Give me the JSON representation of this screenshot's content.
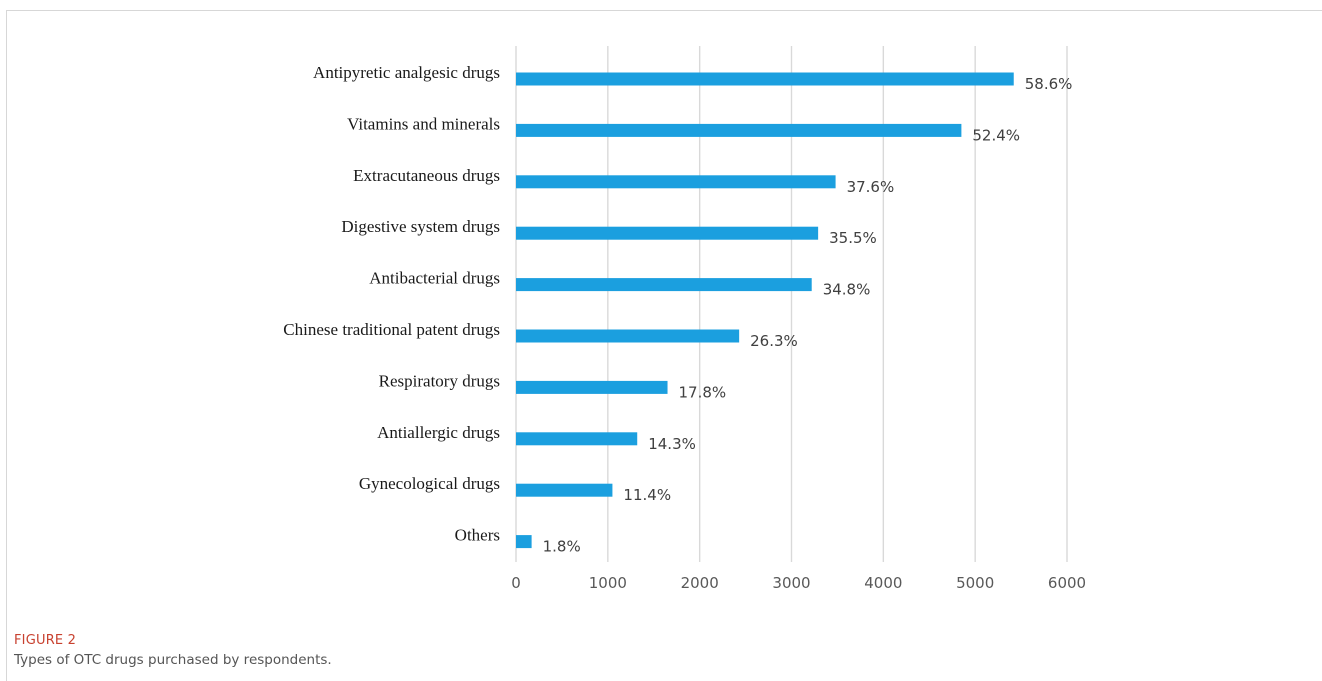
{
  "figure": {
    "label": "FIGURE 2",
    "caption": "Types of OTC drugs purchased by respondents."
  },
  "colors": {
    "bar": "#1b9fdf",
    "grid": "#d9d9d9"
  },
  "chart_data": {
    "type": "bar",
    "orientation": "horizontal",
    "title": "",
    "xlabel": "",
    "ylabel": "",
    "xlim": [
      0,
      6000
    ],
    "x_ticks": [
      0,
      1000,
      2000,
      3000,
      4000,
      5000,
      6000
    ],
    "grid": "vertical",
    "categories": [
      "Antipyretic analgesic drugs",
      "Vitamins and minerals",
      "Extracutaneous drugs",
      "Digestive system drugs",
      "Antibacterial drugs",
      "Chinese traditional patent drugs",
      "Respiratory drugs",
      "Antiallergic drugs",
      "Gynecological drugs",
      "Others"
    ],
    "values": [
      5420,
      4850,
      3480,
      3290,
      3220,
      2430,
      1650,
      1320,
      1050,
      170
    ],
    "data_labels": [
      "58.6%",
      "52.4%",
      "37.6%",
      "35.5%",
      "34.8%",
      "26.3%",
      "17.8%",
      "14.3%",
      "11.4%",
      "1.8%"
    ]
  }
}
